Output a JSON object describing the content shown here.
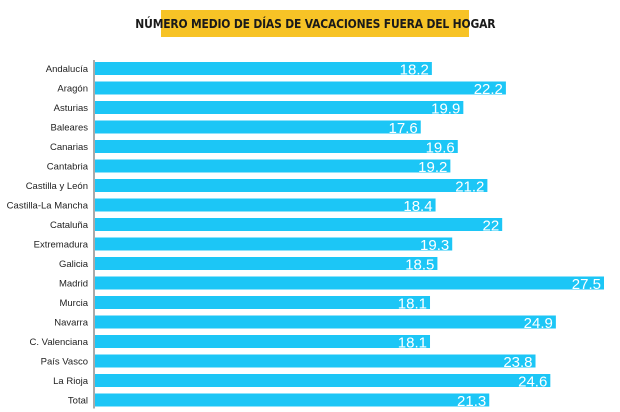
{
  "chart_data": {
    "type": "bar",
    "orientation": "horizontal",
    "title": "NÚMERO MEDIO DE DÍAS DE VACACIONES FUERA DEL HOGAR",
    "categories": [
      "Andalucía",
      "Aragón",
      "Asturias",
      "Baleares",
      "Canarias",
      "Cantabria",
      "Castilla y León",
      "Castilla-La Mancha",
      "Cataluña",
      "Extremadura",
      "Galicia",
      "Madrid",
      "Murcia",
      "Navarra",
      "C. Valenciana",
      "País Vasco",
      "La Rioja",
      "Total"
    ],
    "values": [
      18.2,
      22.2,
      19.9,
      17.6,
      19.6,
      19.2,
      21.2,
      18.4,
      22,
      19.3,
      18.5,
      27.5,
      18.1,
      24.9,
      18.1,
      23.8,
      24.6,
      21.3
    ],
    "value_labels": [
      "18.2",
      "22.2",
      "19.9",
      "17.6",
      "19.6",
      "19.2",
      "21.2",
      "18.4",
      "22",
      "19.3",
      "18.5",
      "27.5",
      "18.1",
      "24.9",
      "18.1",
      "23.8",
      "24.6",
      "21.3"
    ],
    "xlim": [
      0,
      27.5
    ],
    "bar_color": "#1cc6f6",
    "title_bg_color": "#f7c326",
    "axis_color": "#555555",
    "gridlines": false,
    "legend": false
  }
}
